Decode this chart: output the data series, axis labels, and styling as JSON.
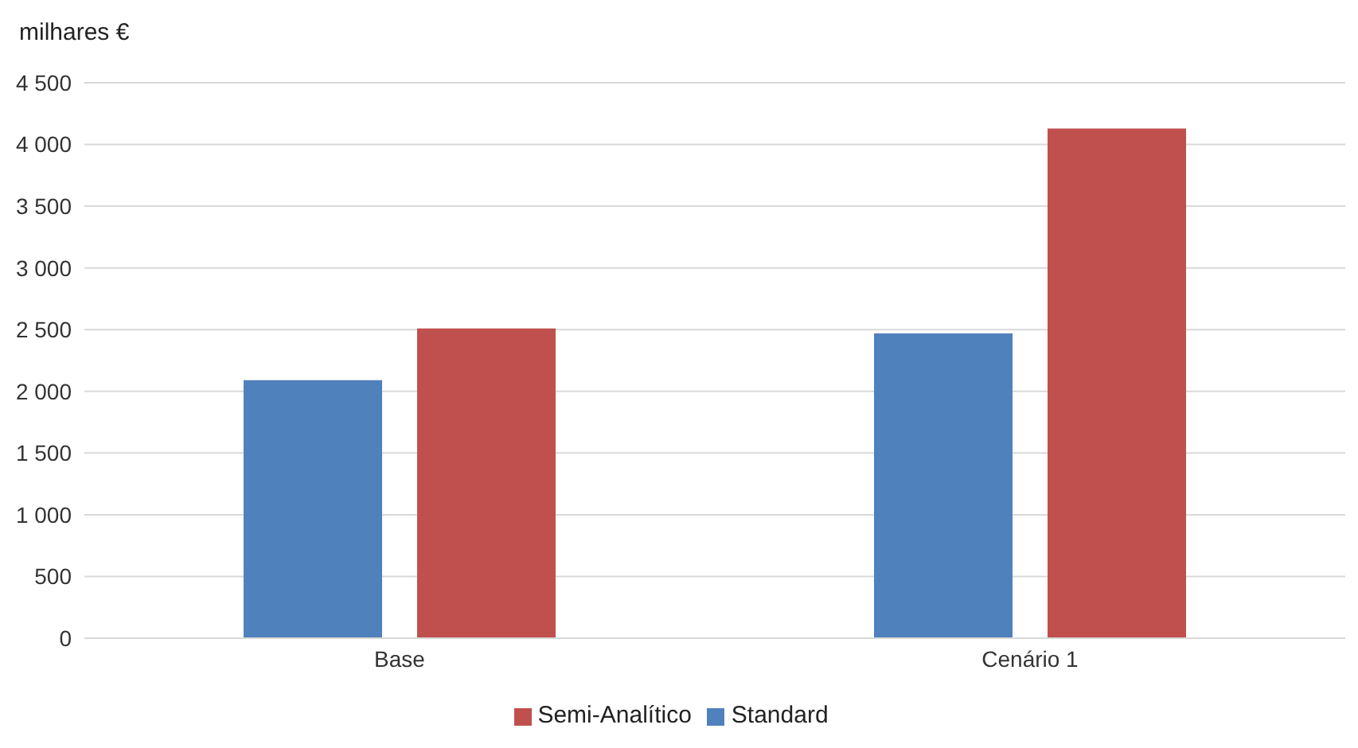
{
  "chart_data": {
    "type": "bar",
    "ylabel": "milhares €",
    "categories": [
      "Base",
      "Cenário 1"
    ],
    "series": [
      {
        "name": "Standard",
        "color": "#4f81bd",
        "values": [
          2090,
          2470
        ]
      },
      {
        "name": "Semi-Analítico",
        "color": "#c0504d",
        "values": [
          2510,
          4130
        ]
      }
    ],
    "ylim": [
      0,
      4500
    ],
    "yticks": [
      0,
      500,
      {
        "value": 1000,
        "label": "1 000"
      },
      {
        "value": 1500,
        "label": "1 500"
      },
      {
        "value": 2000,
        "label": "2 000"
      },
      {
        "value": 2500,
        "label": "2 500"
      },
      {
        "value": 3000,
        "label": "3 000"
      },
      {
        "value": 3500,
        "label": "3 500"
      },
      {
        "value": 4000,
        "label": "4 000"
      },
      {
        "value": 4500,
        "label": "4 500"
      }
    ],
    "grid": "y",
    "legend": "bottom"
  }
}
